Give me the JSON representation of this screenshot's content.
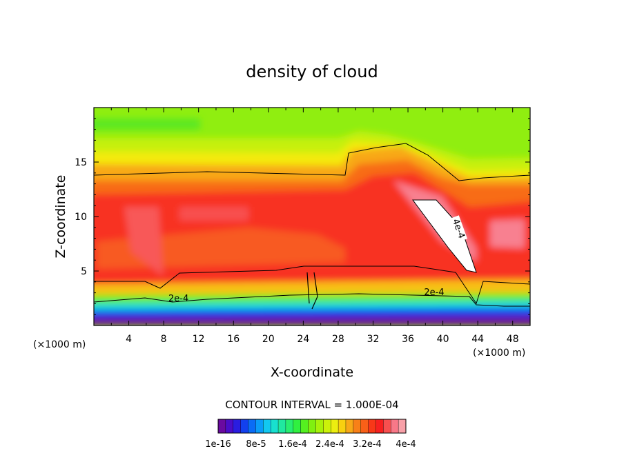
{
  "chart_data": {
    "type": "heatmap",
    "title": "density of cloud",
    "xlabel": "X-coordinate",
    "ylabel": "Z-coordinate",
    "x_unit": "(×1000 m)",
    "x_unit_right": "(×1000 m)",
    "xlim": [
      0,
      50
    ],
    "ylim": [
      0,
      20
    ],
    "x_ticks": [
      4,
      8,
      12,
      16,
      20,
      24,
      28,
      32,
      36,
      40,
      44,
      48
    ],
    "y_ticks": [
      5,
      10,
      15
    ],
    "contour_interval_text": "CONTOUR INTERVAL = 1.000E-04",
    "contour_labels": [
      {
        "text": "2e-4",
        "x": 9.7,
        "z": 2.2
      },
      {
        "text": "2e-4",
        "x": 39.0,
        "z": 2.8
      },
      {
        "text": "4e-4",
        "x": 41.5,
        "z": 8.8
      }
    ],
    "colorbar_labels": [
      "1e-16",
      "8e-5",
      "1.6e-4",
      "2.4e-4",
      "3.2e-4",
      "4e-4"
    ],
    "colorbar_colors": [
      "#6a0aa0",
      "#4b0dc8",
      "#2a1de0",
      "#1240ee",
      "#0a6cf5",
      "#0a9cf8",
      "#12c8f0",
      "#18e0cf",
      "#20e8a0",
      "#28ee70",
      "#30f040",
      "#55f020",
      "#80f010",
      "#a8f20a",
      "#ccf20a",
      "#ecee10",
      "#f8d010",
      "#f8a818",
      "#f88018",
      "#f86018",
      "#f83818",
      "#f82020",
      "#f85050",
      "#f87888",
      "#f8a0a8"
    ]
  }
}
